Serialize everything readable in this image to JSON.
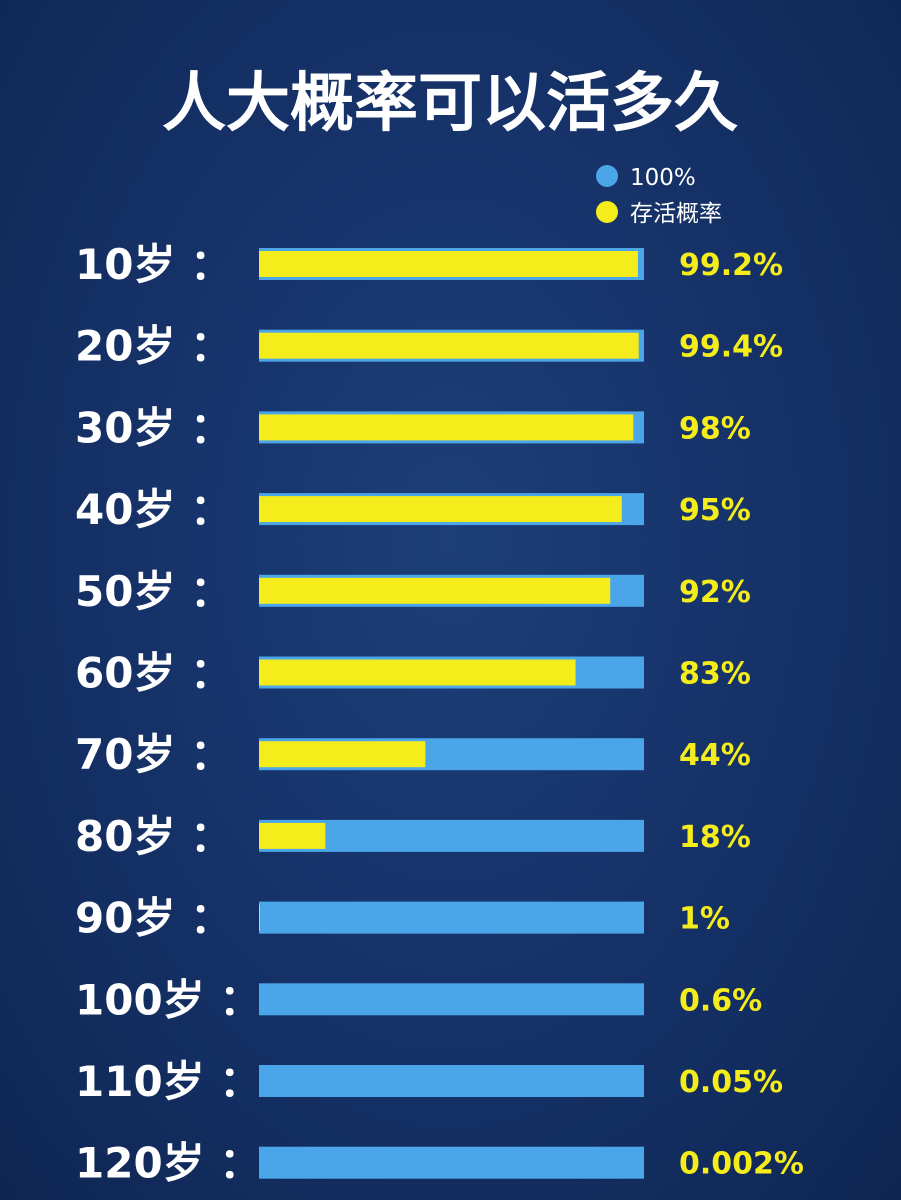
{
  "chart_data": {
    "type": "bar",
    "title": "人大概率可以活多久",
    "legend": [
      {
        "label": "100%",
        "color": "#4aa6e8"
      },
      {
        "label": "存活概率",
        "color": "#f5ec1c"
      }
    ],
    "categories": [
      "10岁 ：",
      "20岁 ：",
      "30岁 ：",
      "40岁 ：",
      "50岁 ：",
      "60岁 ：",
      "70岁 ：",
      "80岁 ：",
      "90岁 ：",
      "100岁 ：",
      "110岁 ：",
      "120岁 ："
    ],
    "series": [
      {
        "name": "100%",
        "values": [
          100,
          100,
          100,
          100,
          100,
          100,
          100,
          100,
          100,
          100,
          100,
          100
        ]
      },
      {
        "name": "存活概率",
        "values": [
          99.2,
          99.4,
          98,
          95,
          92,
          83,
          44,
          18,
          1,
          0.6,
          0.05,
          0.002
        ]
      }
    ],
    "value_labels": [
      "99.2%",
      "99.4%",
      "98%",
      "95%",
      "92%",
      "83%",
      "44%",
      "18%",
      "1%",
      "0.6%",
      "0.05%",
      "0.002%"
    ],
    "xlim": [
      0,
      100
    ],
    "colors": {
      "background": "#16336a",
      "full_bar": "#4aa6e8",
      "survival_bar": "#f5ec1c",
      "value_text": "#f5ec1c"
    }
  }
}
